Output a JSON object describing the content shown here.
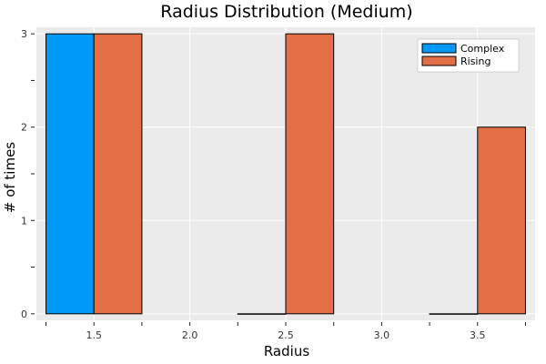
{
  "chart_data": {
    "type": "bar",
    "title": "Radius Distribution (Medium)",
    "xlabel": "Radius",
    "ylabel": "# of times",
    "xlim": [
      1.2,
      3.8
    ],
    "ylim": [
      -0.07,
      3.07
    ],
    "x_ticks": [
      1.5,
      2.0,
      2.5,
      3.0,
      3.5
    ],
    "x_tick_labels": [
      "1.5",
      "2.0",
      "2.5",
      "3.0",
      "3.5"
    ],
    "y_ticks": [
      0,
      1,
      2,
      3
    ],
    "y_tick_labels": [
      "0",
      "1",
      "2",
      "3"
    ],
    "y_minor_ticks": [
      0.5,
      1.5,
      2.5
    ],
    "x_minor_ticks": [
      1.25,
      1.75,
      2.25,
      2.75,
      3.25,
      3.75
    ],
    "grid": true,
    "legend_position": "top-right",
    "series": [
      {
        "name": "Complex",
        "color": "#009af9",
        "bins": [
          {
            "x0": 1.25,
            "x1": 1.5,
            "value": 3
          },
          {
            "x0": 2.25,
            "x1": 2.5,
            "value": 0
          },
          {
            "x0": 3.25,
            "x1": 3.5,
            "value": 0
          }
        ]
      },
      {
        "name": "Rising",
        "color": "#e26f46",
        "bins": [
          {
            "x0": 1.5,
            "x1": 1.75,
            "value": 3
          },
          {
            "x0": 2.5,
            "x1": 2.75,
            "value": 3
          },
          {
            "x0": 3.5,
            "x1": 3.75,
            "value": 2
          }
        ]
      }
    ]
  }
}
